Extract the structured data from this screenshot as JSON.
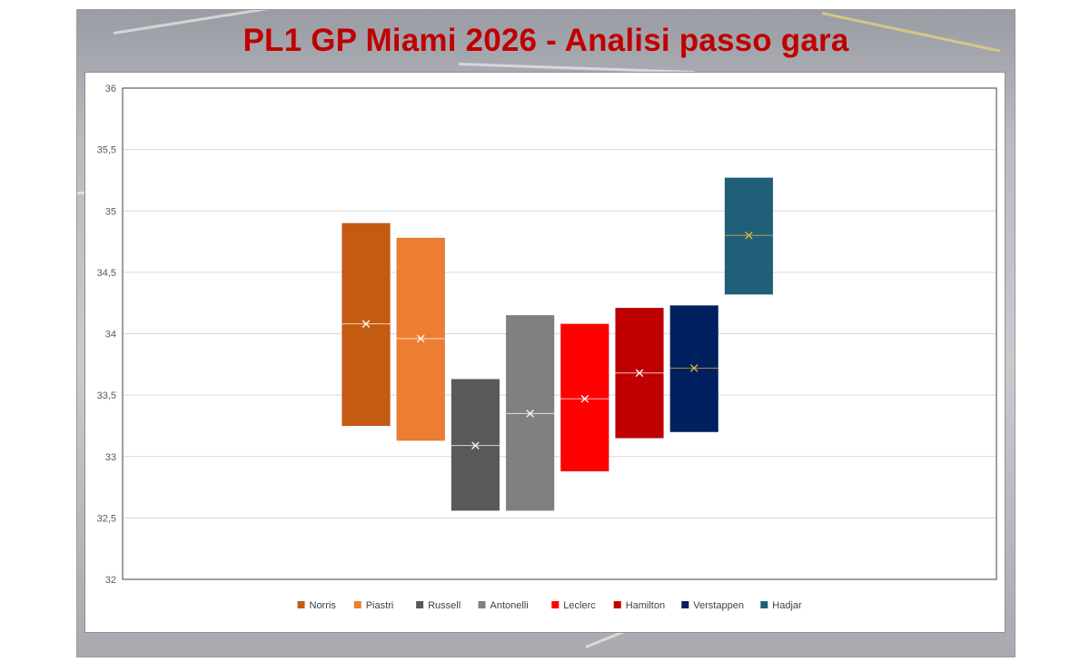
{
  "chart_data": {
    "type": "box",
    "title": "PL1 GP Miami 2026 - Analisi passo gara",
    "xlabel": "",
    "ylabel": "",
    "ylim": [
      32,
      36
    ],
    "yticks": [
      "32",
      "32,5",
      "33",
      "33,5",
      "34",
      "34,5",
      "35",
      "35,5",
      "36"
    ],
    "ytick_values": [
      32,
      32.5,
      33,
      33.5,
      34,
      34.5,
      35,
      35.5,
      36
    ],
    "grid": true,
    "legend_position": "bottom",
    "series": [
      {
        "name": "Norris",
        "color": "#C55A11",
        "low": 33.25,
        "high": 34.9,
        "median": 34.08,
        "mean": 34.08,
        "marker_color": "#ffffff"
      },
      {
        "name": "Piastri",
        "color": "#ED7D31",
        "low": 33.13,
        "high": 34.78,
        "median": 33.96,
        "mean": 33.96,
        "marker_color": "#ffffff"
      },
      {
        "name": "Russell",
        "color": "#595959",
        "low": 32.56,
        "high": 33.63,
        "median": 33.09,
        "mean": 33.09,
        "marker_color": "#ffffff"
      },
      {
        "name": "Antonelli",
        "color": "#808080",
        "low": 32.56,
        "high": 34.15,
        "median": 33.35,
        "mean": 33.35,
        "marker_color": "#ffffff"
      },
      {
        "name": "Leclerc",
        "color": "#FF0000",
        "low": 32.88,
        "high": 34.08,
        "median": 33.47,
        "mean": 33.47,
        "marker_color": "#ffffff"
      },
      {
        "name": "Hamilton",
        "color": "#C00000",
        "low": 33.15,
        "high": 34.21,
        "median": 33.68,
        "mean": 33.68,
        "marker_color": "#ffffff"
      },
      {
        "name": "Verstappen",
        "color": "#002060",
        "low": 33.2,
        "high": 34.23,
        "median": 33.72,
        "mean": 33.72,
        "marker_color": "#E8B93C"
      },
      {
        "name": "Hadjar",
        "color": "#1F5F7A",
        "low": 34.32,
        "high": 35.27,
        "median": 34.8,
        "mean": 34.8,
        "marker_color": "#E8B93C"
      }
    ]
  }
}
